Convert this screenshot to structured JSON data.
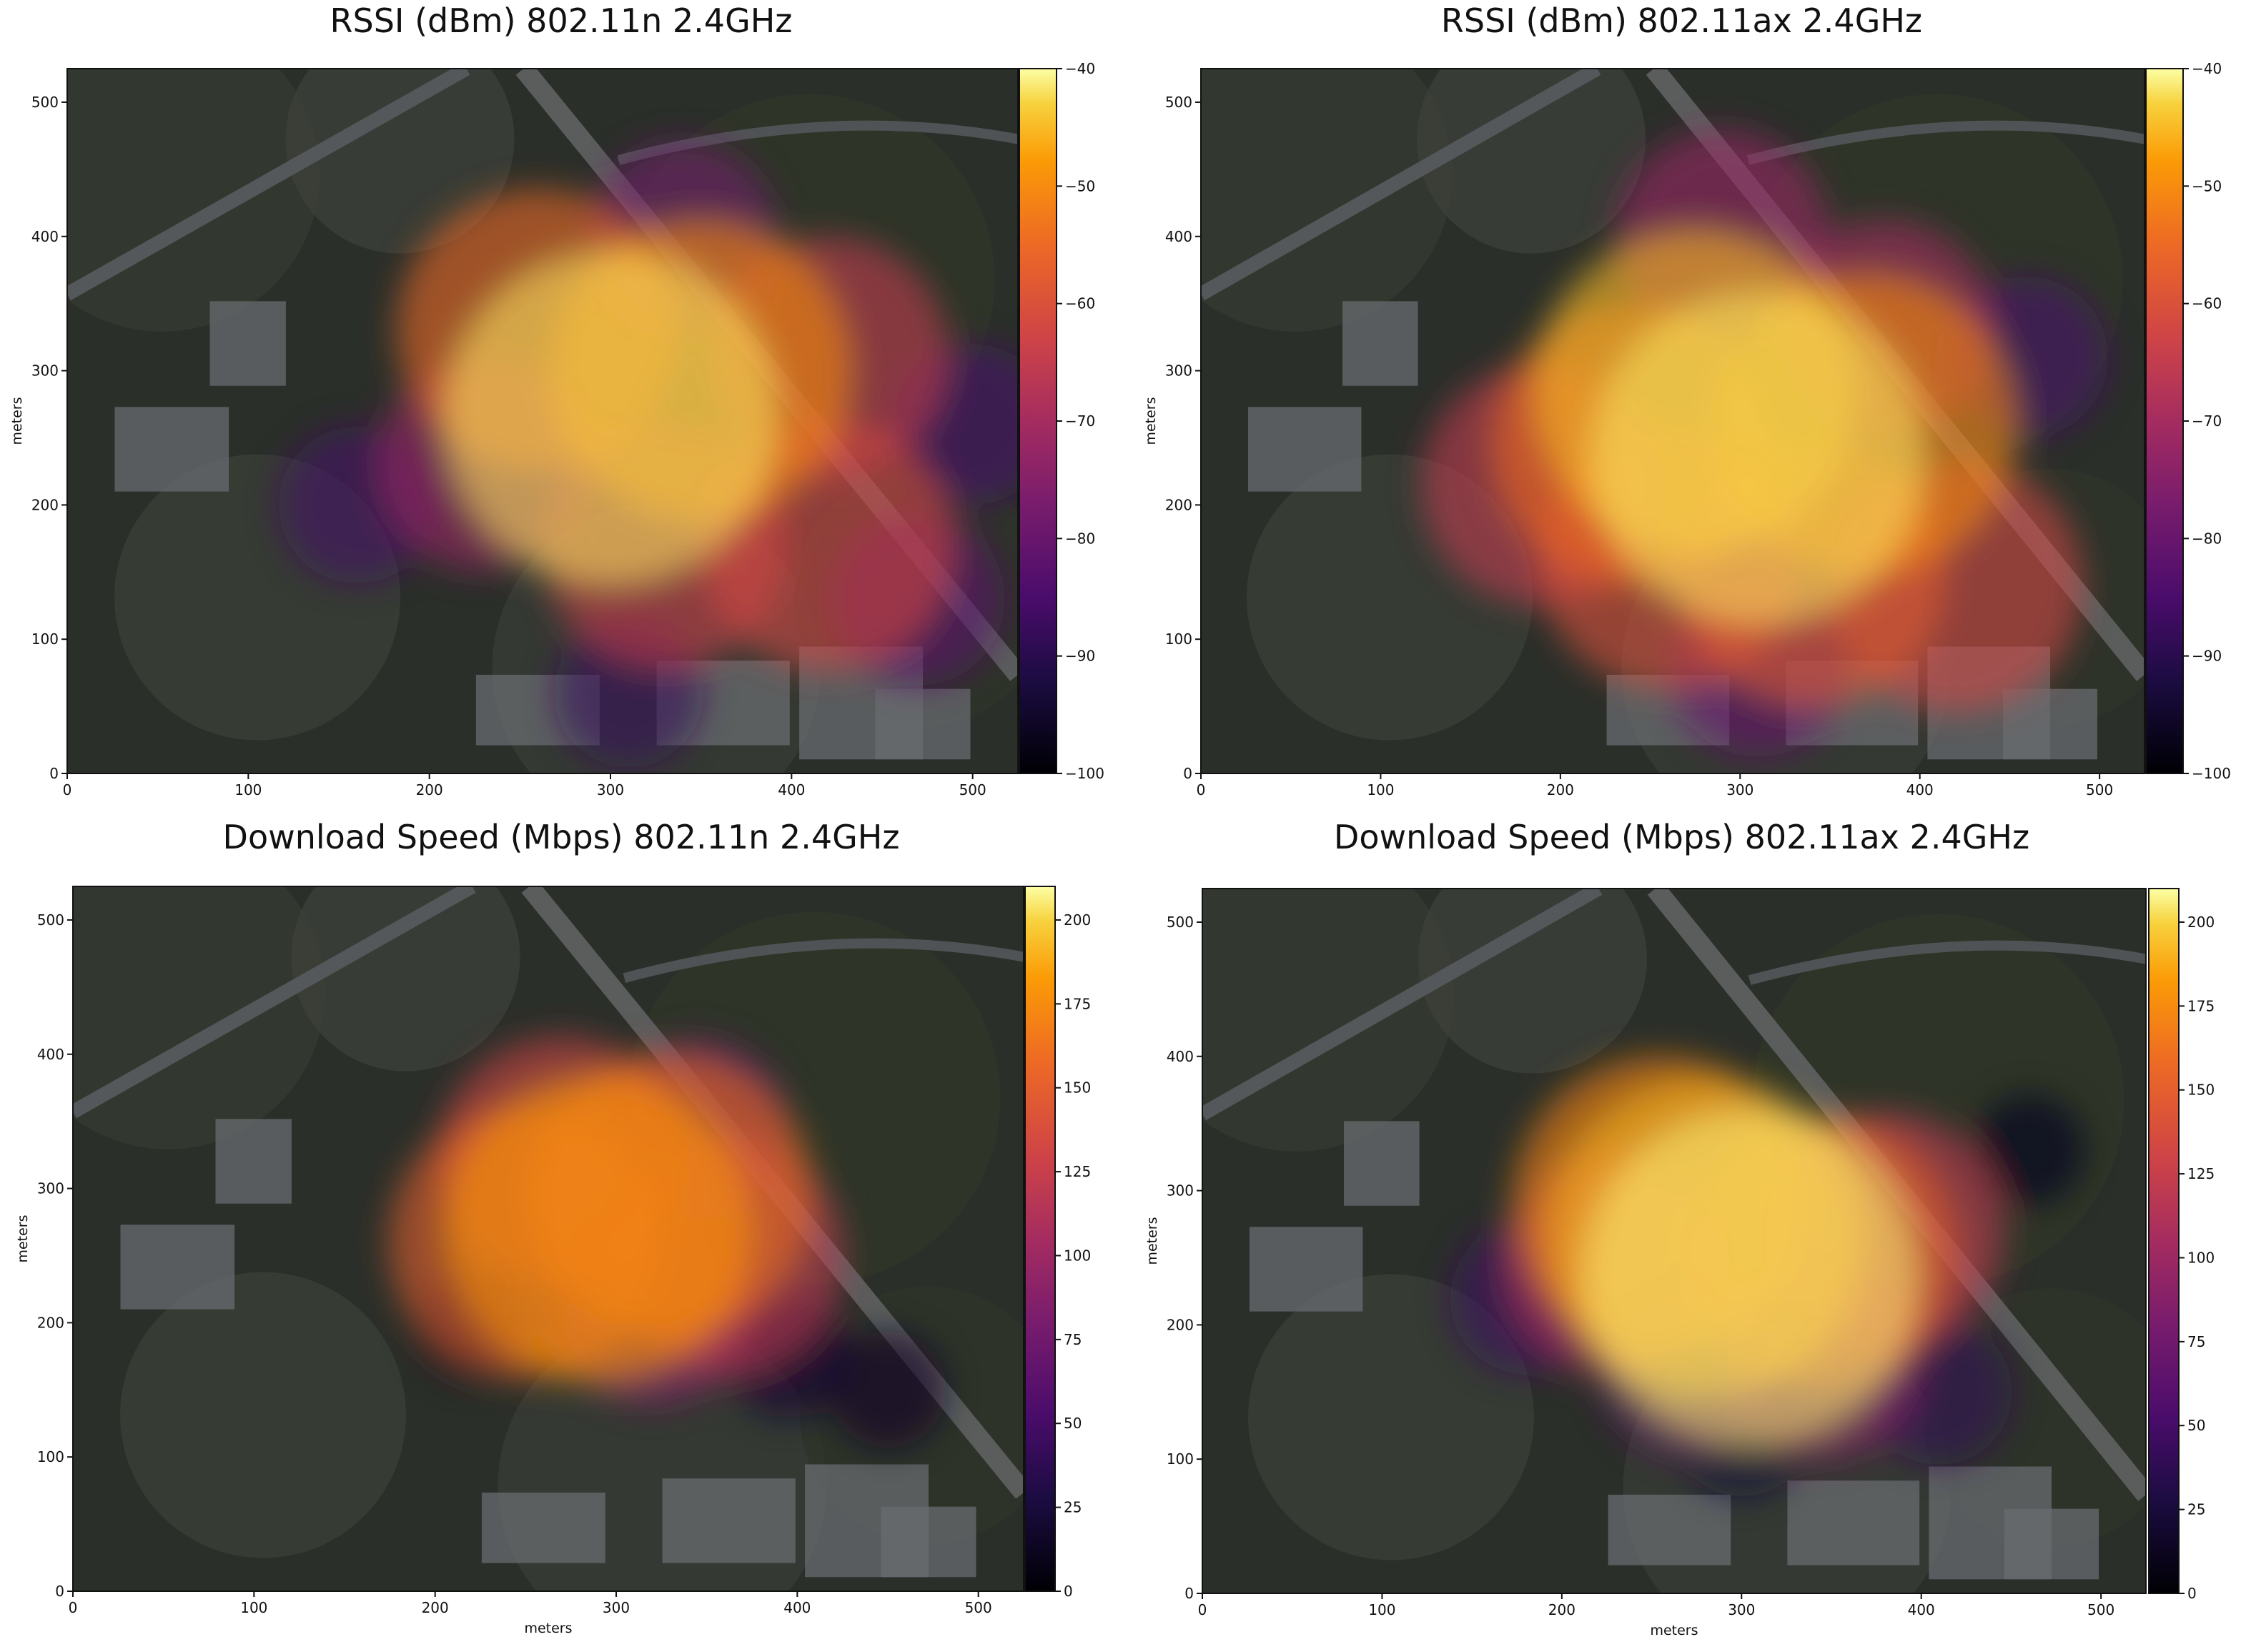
{
  "chart_data": [
    {
      "type": "heatmap",
      "title": "RSSI (dBm) 802.11n 2.4GHz",
      "xlabel": "",
      "ylabel": "meters",
      "xlim": [
        0,
        525
      ],
      "ylim": [
        0,
        525
      ],
      "x_ticks": [
        "0",
        "100",
        "200",
        "300",
        "400",
        "500"
      ],
      "y_ticks": [
        "0",
        "100",
        "200",
        "300",
        "400",
        "500"
      ],
      "colorbar": {
        "range": [
          -100,
          -40
        ],
        "ticks": [
          "-40",
          "-50",
          "-60",
          "-70",
          "-80",
          "-90",
          "-100"
        ]
      },
      "hotspots": [
        {
          "x": 300,
          "y": 265,
          "value": -42
        },
        {
          "x": 350,
          "y": 300,
          "value": -50
        },
        {
          "x": 260,
          "y": 330,
          "value": -55
        },
        {
          "x": 420,
          "y": 170,
          "value": -62
        },
        {
          "x": 330,
          "y": 170,
          "value": -64
        },
        {
          "x": 420,
          "y": 310,
          "value": -65
        },
        {
          "x": 230,
          "y": 230,
          "value": -72
        },
        {
          "x": 340,
          "y": 400,
          "value": -78
        },
        {
          "x": 470,
          "y": 130,
          "value": -82
        },
        {
          "x": 160,
          "y": 200,
          "value": -86
        },
        {
          "x": 500,
          "y": 260,
          "value": -85
        },
        {
          "x": 310,
          "y": 60,
          "value": -88
        }
      ]
    },
    {
      "type": "heatmap",
      "title": "RSSI (dBm) 802.11ax 2.4GHz",
      "xlabel": "",
      "ylabel": "meters",
      "xlim": [
        0,
        525
      ],
      "ylim": [
        0,
        525
      ],
      "x_ticks": [
        "0",
        "100",
        "200",
        "300",
        "400",
        "500"
      ],
      "y_ticks": [
        "0",
        "100",
        "200",
        "300",
        "400",
        "500"
      ],
      "colorbar": {
        "range": [
          -100,
          -40
        ],
        "ticks": [
          "-40",
          "-50",
          "-60",
          "-70",
          "-80",
          "-90",
          "-100"
        ]
      },
      "hotspots": [
        {
          "x": 310,
          "y": 235,
          "value": -42
        },
        {
          "x": 275,
          "y": 285,
          "value": -45
        },
        {
          "x": 370,
          "y": 260,
          "value": -50
        },
        {
          "x": 240,
          "y": 245,
          "value": -55
        },
        {
          "x": 340,
          "y": 150,
          "value": -58
        },
        {
          "x": 260,
          "y": 160,
          "value": -60
        },
        {
          "x": 420,
          "y": 140,
          "value": -62
        },
        {
          "x": 190,
          "y": 215,
          "value": -65
        },
        {
          "x": 290,
          "y": 400,
          "value": -72
        },
        {
          "x": 380,
          "y": 330,
          "value": -70
        },
        {
          "x": 310,
          "y": 80,
          "value": -80
        },
        {
          "x": 460,
          "y": 310,
          "value": -85
        }
      ]
    },
    {
      "type": "heatmap",
      "title": "Download Speed (Mbps) 802.11n 2.4GHz",
      "xlabel": "meters",
      "ylabel": "meters",
      "xlim": [
        0,
        525
      ],
      "ylim": [
        0,
        525
      ],
      "x_ticks": [
        "0",
        "100",
        "200",
        "300",
        "400",
        "500"
      ],
      "y_ticks": [
        "0",
        "100",
        "200",
        "300",
        "400",
        "500"
      ],
      "colorbar": {
        "range": [
          0,
          210
        ],
        "ticks": [
          "200",
          "175",
          "150",
          "125",
          "100",
          "75",
          "50",
          "25",
          "0"
        ]
      },
      "hotspots": [
        {
          "x": 290,
          "y": 270,
          "value": 180
        },
        {
          "x": 330,
          "y": 295,
          "value": 160
        },
        {
          "x": 250,
          "y": 260,
          "value": 150
        },
        {
          "x": 270,
          "y": 320,
          "value": 130
        },
        {
          "x": 360,
          "y": 250,
          "value": 120
        },
        {
          "x": 320,
          "y": 215,
          "value": 90
        },
        {
          "x": 345,
          "y": 345,
          "value": 70
        },
        {
          "x": 395,
          "y": 175,
          "value": 20
        },
        {
          "x": 450,
          "y": 150,
          "value": 15
        },
        {
          "x": 220,
          "y": 200,
          "value": 12
        }
      ]
    },
    {
      "type": "heatmap",
      "title": "Download Speed (Mbps) 802.11ax 2.4GHz",
      "xlabel": "meters",
      "ylabel": "meters",
      "xlim": [
        0,
        525
      ],
      "ylim": [
        0,
        525
      ],
      "x_ticks": [
        "0",
        "100",
        "200",
        "300",
        "400",
        "500"
      ],
      "y_ticks": [
        "0",
        "100",
        "200",
        "300",
        "400",
        "500"
      ],
      "colorbar": {
        "range": [
          0,
          210
        ],
        "ticks": [
          "200",
          "175",
          "150",
          "125",
          "100",
          "75",
          "50",
          "25",
          "0"
        ]
      },
      "hotspots": [
        {
          "x": 305,
          "y": 235,
          "value": 205
        },
        {
          "x": 280,
          "y": 265,
          "value": 190
        },
        {
          "x": 255,
          "y": 290,
          "value": 170
        },
        {
          "x": 345,
          "y": 255,
          "value": 150
        },
        {
          "x": 380,
          "y": 270,
          "value": 120
        },
        {
          "x": 230,
          "y": 245,
          "value": 110
        },
        {
          "x": 345,
          "y": 175,
          "value": 90
        },
        {
          "x": 270,
          "y": 170,
          "value": 70
        },
        {
          "x": 180,
          "y": 220,
          "value": 45
        },
        {
          "x": 410,
          "y": 150,
          "value": 40
        },
        {
          "x": 300,
          "y": 120,
          "value": 25
        },
        {
          "x": 460,
          "y": 330,
          "value": 10
        }
      ]
    }
  ]
}
